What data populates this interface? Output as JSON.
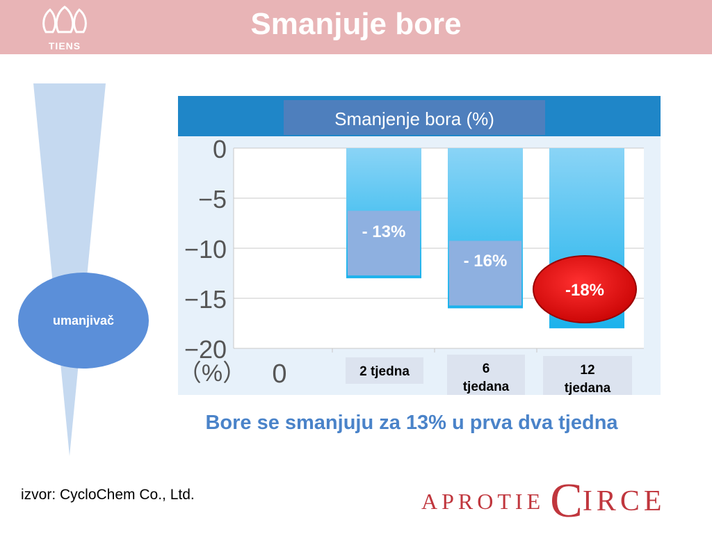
{
  "header": {
    "title": "Smanjuje bore",
    "logo_text": "TIENS"
  },
  "sidebar": {
    "circle_label": "umanjivač"
  },
  "chart_data": {
    "type": "bar",
    "title": "Smanjenje bora (%)",
    "ylabel": "（%）",
    "ylim": [
      -20,
      0
    ],
    "yticks": [
      "0",
      "−5",
      "−10",
      "−15",
      "−20"
    ],
    "x_zero_label": "0",
    "categories": [
      "2 tjedna",
      "6 tjedana",
      "12 tjedana"
    ],
    "values": [
      -13,
      -16,
      -18
    ],
    "data_labels": [
      "- 13%",
      "- 16%",
      "-18%"
    ],
    "grid": true,
    "colors": {
      "header": "#1f86c8",
      "plot_bg": "#e7f1fa",
      "bar": "#4fc0ee",
      "label_box": "#8eb0e0",
      "highlight": "#e31c1c"
    }
  },
  "caption": "Bore se smanjuju za 13%  u prva dva tjedna",
  "source": "izvor:  CycloChem Co., Ltd.",
  "brand": {
    "part1": "APROTIE",
    "part2": "C",
    "part3": "IRCE"
  }
}
